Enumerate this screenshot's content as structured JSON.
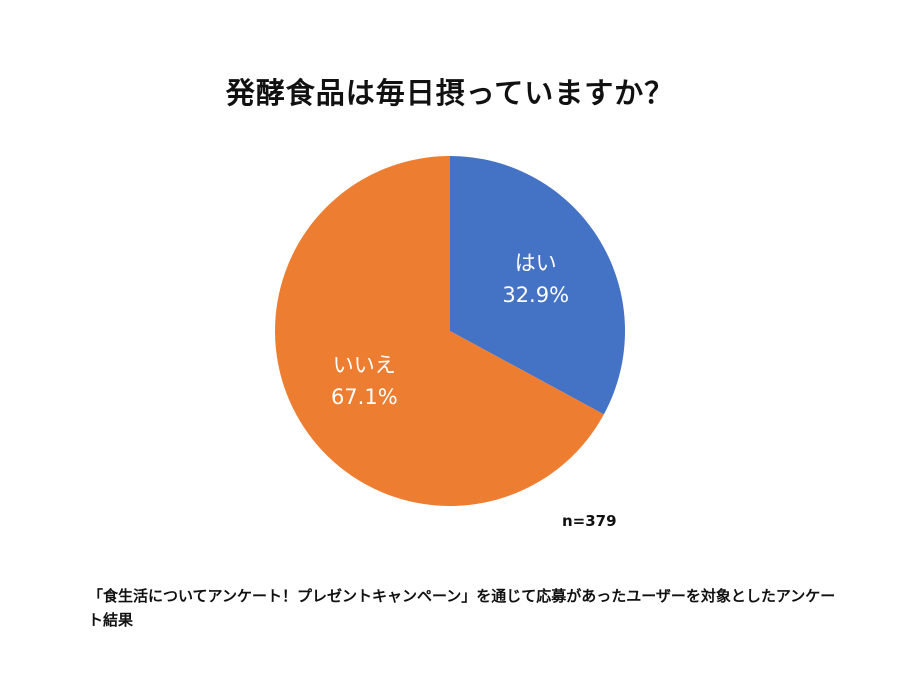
{
  "title": "発酵食品は毎日摂っていますか？",
  "sample_note": "n=379",
  "footnote": "「食生活についてアンケート！プレゼントキャンペーン」を通じて応募があったユーザーを対象としたアンケート結果",
  "chart_data": {
    "type": "pie",
    "title": "発酵食品は毎日摂っていますか？",
    "slices": [
      {
        "label": "はい",
        "value": 32.9,
        "display": "32.9%",
        "color": "#4472c4"
      },
      {
        "label": "いいえ",
        "value": 67.1,
        "display": "67.1%",
        "color": "#ed7d31"
      }
    ],
    "unit": "%",
    "start_angle": "12 o'clock",
    "direction": "clockwise",
    "legend": "none"
  }
}
